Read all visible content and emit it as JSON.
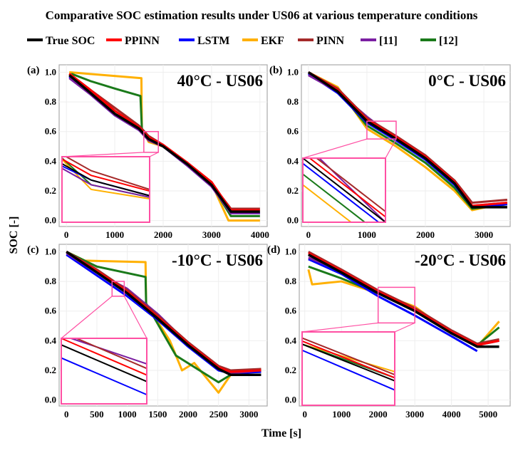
{
  "chart_data": {
    "title": "Comparative SOC estimation results under US06 at various temperature conditions",
    "xlabel": "Time [s]",
    "ylabel": "SOC [-]",
    "legend_placement": "top",
    "legend": [
      {
        "name": "True SOC",
        "color": "#000000"
      },
      {
        "name": "PPINN",
        "color": "#FF0000"
      },
      {
        "name": "LSTM",
        "color": "#0000FF"
      },
      {
        "name": "EKF",
        "color": "#FFB000"
      },
      {
        "name": "PINN",
        "color": "#A52A2A"
      },
      {
        "name": "[11]",
        "color": "#7B1FA2"
      },
      {
        "name": "[12]",
        "color": "#1A7A1A"
      }
    ],
    "inset_color": "#FF4FA3",
    "panels": [
      {
        "label": "(a)",
        "title": "40°C - US06",
        "type": "line",
        "grid": true,
        "xlim": [
          -150,
          4150
        ],
        "ylim": [
          -0.04,
          1.05
        ],
        "xticks": [
          0,
          1000,
          2000,
          3000,
          4000
        ],
        "yticks": [
          0.0,
          0.2,
          0.4,
          0.6,
          0.8,
          1.0
        ],
        "zoom_box": {
          "x": [
            1600,
            1900
          ],
          "y": [
            0.46,
            0.6
          ]
        },
        "series": {
          "True SOC": [
            [
              60,
              0.98
            ],
            [
              500,
              0.86
            ],
            [
              1000,
              0.72
            ],
            [
              1500,
              0.62
            ],
            [
              1700,
              0.55
            ],
            [
              2000,
              0.5
            ],
            [
              2500,
              0.38
            ],
            [
              3000,
              0.24
            ],
            [
              3400,
              0.06
            ],
            [
              4000,
              0.06
            ]
          ],
          "PPINN": [
            [
              60,
              0.99
            ],
            [
              500,
              0.88
            ],
            [
              1000,
              0.74
            ],
            [
              1500,
              0.63
            ],
            [
              1700,
              0.56
            ],
            [
              2000,
              0.51
            ],
            [
              2500,
              0.39
            ],
            [
              3000,
              0.26
            ],
            [
              3400,
              0.07
            ],
            [
              4000,
              0.07
            ]
          ],
          "LSTM": [
            [
              60,
              0.97
            ],
            [
              500,
              0.85
            ],
            [
              1000,
              0.71
            ],
            [
              1500,
              0.61
            ],
            [
              1700,
              0.55
            ],
            [
              2000,
              0.5
            ],
            [
              2500,
              0.37
            ],
            [
              3000,
              0.23
            ],
            [
              3400,
              0.05
            ],
            [
              4000,
              0.05
            ]
          ],
          "EKF": [
            [
              60,
              1.0
            ],
            [
              1550,
              0.96
            ],
            [
              1560,
              0.62
            ],
            [
              1700,
              0.53
            ],
            [
              2000,
              0.5
            ],
            [
              3000,
              0.25
            ],
            [
              3350,
              0.0
            ],
            [
              4000,
              0.0
            ]
          ],
          "PINN": [
            [
              60,
              0.99
            ],
            [
              500,
              0.88
            ],
            [
              1000,
              0.76
            ],
            [
              1500,
              0.64
            ],
            [
              1700,
              0.57
            ],
            [
              2000,
              0.51
            ],
            [
              2500,
              0.39
            ],
            [
              3000,
              0.25
            ],
            [
              3400,
              0.08
            ],
            [
              4000,
              0.08
            ]
          ],
          "[11]": [
            [
              60,
              0.96
            ],
            [
              500,
              0.85
            ],
            [
              1000,
              0.71
            ],
            [
              1500,
              0.61
            ],
            [
              1700,
              0.54
            ],
            [
              2000,
              0.5
            ],
            [
              2500,
              0.37
            ],
            [
              3000,
              0.23
            ],
            [
              3400,
              0.05
            ],
            [
              4000,
              0.05
            ]
          ],
          "[12]": [
            [
              100,
              0.99
            ],
            [
              500,
              0.94
            ],
            [
              1000,
              0.89
            ],
            [
              1530,
              0.84
            ],
            [
              1560,
              0.62
            ],
            [
              1700,
              0.54
            ],
            [
              2000,
              0.5
            ],
            [
              3000,
              0.24
            ],
            [
              3400,
              0.03
            ],
            [
              4000,
              0.03
            ]
          ]
        }
      },
      {
        "label": "(b)",
        "title": "0°C - US06",
        "type": "line",
        "grid": true,
        "xlim": [
          -120,
          3450
        ],
        "ylim": [
          -0.04,
          1.05
        ],
        "xticks": [
          0,
          1000,
          2000,
          3000
        ],
        "yticks": [
          0.0,
          0.2,
          0.4,
          0.6,
          0.8,
          1.0
        ],
        "zoom_box": {
          "x": [
            1000,
            1500
          ],
          "y": [
            0.55,
            0.67
          ]
        },
        "series": {
          "True SOC": [
            [
              0,
              1.0
            ],
            [
              500,
              0.87
            ],
            [
              1000,
              0.67
            ],
            [
              1500,
              0.55
            ],
            [
              2000,
              0.42
            ],
            [
              2500,
              0.25
            ],
            [
              2800,
              0.09
            ],
            [
              3400,
              0.09
            ]
          ],
          "PPINN": [
            [
              0,
              1.0
            ],
            [
              500,
              0.88
            ],
            [
              1000,
              0.68
            ],
            [
              1500,
              0.56
            ],
            [
              2000,
              0.43
            ],
            [
              2500,
              0.26
            ],
            [
              2800,
              0.1
            ],
            [
              3400,
              0.12
            ]
          ],
          "LSTM": [
            [
              0,
              0.99
            ],
            [
              500,
              0.86
            ],
            [
              1000,
              0.66
            ],
            [
              1500,
              0.54
            ],
            [
              2000,
              0.41
            ],
            [
              2500,
              0.24
            ],
            [
              2800,
              0.09
            ],
            [
              3400,
              0.11
            ]
          ],
          "EKF": [
            [
              0,
              1.0
            ],
            [
              500,
              0.9
            ],
            [
              1000,
              0.62
            ],
            [
              1500,
              0.5
            ],
            [
              2000,
              0.36
            ],
            [
              2500,
              0.2
            ],
            [
              2800,
              0.07
            ],
            [
              3400,
              0.12
            ]
          ],
          "PINN": [
            [
              0,
              1.0
            ],
            [
              500,
              0.89
            ],
            [
              1000,
              0.69
            ],
            [
              1500,
              0.57
            ],
            [
              2000,
              0.44
            ],
            [
              2500,
              0.27
            ],
            [
              2800,
              0.12
            ],
            [
              3400,
              0.14
            ]
          ],
          "[11]": [
            [
              0,
              0.98
            ],
            [
              500,
              0.87
            ],
            [
              1000,
              0.7
            ],
            [
              1500,
              0.55
            ],
            [
              2000,
              0.42
            ],
            [
              2500,
              0.25
            ],
            [
              2800,
              0.1
            ],
            [
              3400,
              0.12
            ]
          ],
          "[12]": [
            [
              0,
              0.99
            ],
            [
              500,
              0.88
            ],
            [
              1000,
              0.64
            ],
            [
              1500,
              0.52
            ],
            [
              2000,
              0.39
            ],
            [
              2500,
              0.22
            ],
            [
              2800,
              0.08
            ],
            [
              3400,
              0.11
            ]
          ]
        }
      },
      {
        "label": "(c)",
        "title": "-10°C - US06",
        "type": "line",
        "grid": true,
        "xlim": [
          -120,
          3300
        ],
        "ylim": [
          -0.04,
          1.05
        ],
        "xticks": [
          0,
          500,
          1000,
          1500,
          2000,
          2500,
          3000
        ],
        "yticks": [
          0.0,
          0.2,
          0.4,
          0.6,
          0.8,
          1.0
        ],
        "zoom_box": {
          "x": [
            750,
            950
          ],
          "y": [
            0.7,
            0.8
          ]
        },
        "series": {
          "True SOC": [
            [
              0,
              1.0
            ],
            [
              500,
              0.86
            ],
            [
              1000,
              0.72
            ],
            [
              1500,
              0.55
            ],
            [
              2000,
              0.37
            ],
            [
              2500,
              0.21
            ],
            [
              2700,
              0.17
            ],
            [
              3200,
              0.17
            ]
          ],
          "PPINN": [
            [
              0,
              1.0
            ],
            [
              500,
              0.87
            ],
            [
              1000,
              0.73
            ],
            [
              1500,
              0.56
            ],
            [
              2000,
              0.38
            ],
            [
              2500,
              0.22
            ],
            [
              2700,
              0.19
            ],
            [
              3200,
              0.2
            ]
          ],
          "LSTM": [
            [
              0,
              0.98
            ],
            [
              500,
              0.84
            ],
            [
              1000,
              0.7
            ],
            [
              1500,
              0.54
            ],
            [
              2000,
              0.36
            ],
            [
              2500,
              0.2
            ],
            [
              2700,
              0.18
            ],
            [
              3200,
              0.19
            ]
          ],
          "EKF": [
            [
              0,
              1.0
            ],
            [
              300,
              0.94
            ],
            [
              1300,
              0.93
            ],
            [
              1310,
              0.65
            ],
            [
              1700,
              0.4
            ],
            [
              1900,
              0.2
            ],
            [
              2100,
              0.25
            ],
            [
              2500,
              0.05
            ],
            [
              2700,
              0.17
            ],
            [
              3200,
              0.21
            ]
          ],
          "PINN": [
            [
              0,
              1.0
            ],
            [
              500,
              0.88
            ],
            [
              1000,
              0.74
            ],
            [
              1500,
              0.57
            ],
            [
              2000,
              0.39
            ],
            [
              2500,
              0.23
            ],
            [
              2700,
              0.2
            ],
            [
              3200,
              0.21
            ]
          ],
          "[11]": [
            [
              0,
              0.99
            ],
            [
              500,
              0.86
            ],
            [
              1000,
              0.75
            ],
            [
              1500,
              0.58
            ],
            [
              2000,
              0.38
            ],
            [
              2500,
              0.21
            ],
            [
              2700,
              0.18
            ],
            [
              3200,
              0.2
            ]
          ],
          "[12]": [
            [
              0,
              1.0
            ],
            [
              500,
              0.9
            ],
            [
              1300,
              0.83
            ],
            [
              1310,
              0.65
            ],
            [
              1800,
              0.3
            ],
            [
              2500,
              0.12
            ],
            [
              2700,
              0.17
            ],
            [
              3200,
              0.2
            ]
          ]
        }
      },
      {
        "label": "(d)",
        "title": "-20°C - US06",
        "type": "line",
        "grid": true,
        "xlim": [
          -150,
          5600
        ],
        "ylim": [
          -0.04,
          1.05
        ],
        "xticks": [
          0,
          1000,
          2000,
          3000,
          4000,
          5000
        ],
        "yticks": [
          0.0,
          0.2,
          0.4,
          0.6,
          0.8,
          1.0
        ],
        "zoom_box": {
          "x": [
            2000,
            3000
          ],
          "y": [
            0.52,
            0.76
          ]
        },
        "series": {
          "True SOC": [
            [
              100,
              0.98
            ],
            [
              1000,
              0.86
            ],
            [
              2000,
              0.72
            ],
            [
              3000,
              0.6
            ],
            [
              4000,
              0.45
            ],
            [
              4700,
              0.36
            ],
            [
              5300,
              0.36
            ]
          ],
          "PPINN": [
            [
              100,
              0.99
            ],
            [
              1000,
              0.87
            ],
            [
              2000,
              0.73
            ],
            [
              3000,
              0.61
            ],
            [
              4000,
              0.46
            ],
            [
              4700,
              0.37
            ],
            [
              5300,
              0.4
            ]
          ],
          "LSTM": [
            [
              100,
              0.95
            ],
            [
              1000,
              0.85
            ],
            [
              2000,
              0.7
            ],
            [
              3000,
              0.57
            ],
            [
              4000,
              0.43
            ],
            [
              4700,
              0.33
            ]
          ],
          "EKF": [
            [
              100,
              0.88
            ],
            [
              200,
              0.78
            ],
            [
              1000,
              0.8
            ],
            [
              2000,
              0.72
            ],
            [
              3000,
              0.63
            ],
            [
              4000,
              0.45
            ],
            [
              4700,
              0.36
            ],
            [
              5300,
              0.53
            ]
          ],
          "PINN": [
            [
              100,
              1.0
            ],
            [
              1000,
              0.88
            ],
            [
              2000,
              0.74
            ],
            [
              3000,
              0.62
            ],
            [
              4000,
              0.47
            ],
            [
              4700,
              0.38
            ],
            [
              5300,
              0.41
            ]
          ],
          "[11]": [
            [
              100,
              0.96
            ],
            [
              1000,
              0.87
            ],
            [
              2000,
              0.73
            ],
            [
              3000,
              0.61
            ],
            [
              4000,
              0.46
            ],
            [
              4700,
              0.37
            ],
            [
              5300,
              0.4
            ]
          ],
          "[12]": [
            [
              100,
              0.9
            ],
            [
              1000,
              0.82
            ],
            [
              2000,
              0.72
            ],
            [
              3000,
              0.61
            ],
            [
              4000,
              0.46
            ],
            [
              4700,
              0.37
            ],
            [
              5300,
              0.49
            ]
          ]
        }
      }
    ]
  }
}
